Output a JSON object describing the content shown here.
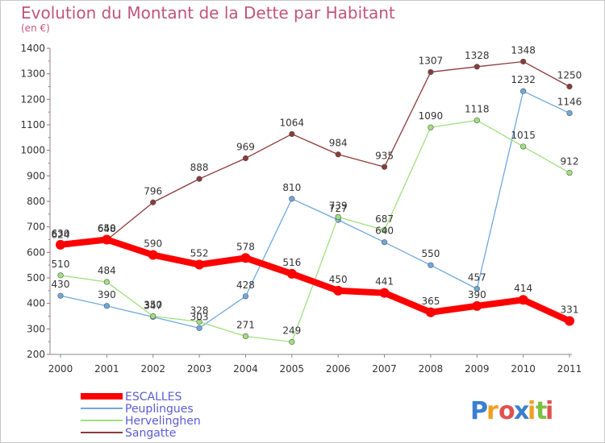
{
  "chart_data": {
    "type": "line",
    "title": "Evolution du Montant de la Dette par Habitant",
    "subtitle": "(en €)",
    "x": [
      "2000",
      "2001",
      "2002",
      "2003",
      "2004",
      "2005",
      "2006",
      "2007",
      "2008",
      "2009",
      "2010",
      "2011"
    ],
    "ylim": [
      200,
      1400
    ],
    "yticks": [
      200,
      300,
      400,
      500,
      600,
      700,
      800,
      900,
      1000,
      1100,
      1200,
      1300,
      1400
    ],
    "grid": false,
    "legend_position": "bottom-left",
    "series": [
      {
        "name": "ESCALLES",
        "color": "#ff0000",
        "values": [
          630,
          650,
          590,
          552,
          578,
          516,
          450,
          441,
          365,
          390,
          414,
          331
        ]
      },
      {
        "name": "Peuplingues",
        "color": "#6fa8dc",
        "values": [
          430,
          390,
          347,
          303,
          428,
          810,
          727,
          640,
          550,
          457,
          1232,
          1146
        ]
      },
      {
        "name": "Hervelinghen",
        "color": "#9fe07f",
        "values": [
          510,
          484,
          350,
          328,
          271,
          249,
          739,
          687,
          1090,
          1118,
          1015,
          912
        ]
      },
      {
        "name": "Sangatte",
        "color": "#8b3a3a",
        "values": [
          624,
          648,
          796,
          888,
          969,
          1064,
          984,
          935,
          1307,
          1328,
          1348,
          1250
        ]
      }
    ]
  },
  "logo": {
    "text": "Proxiti"
  }
}
